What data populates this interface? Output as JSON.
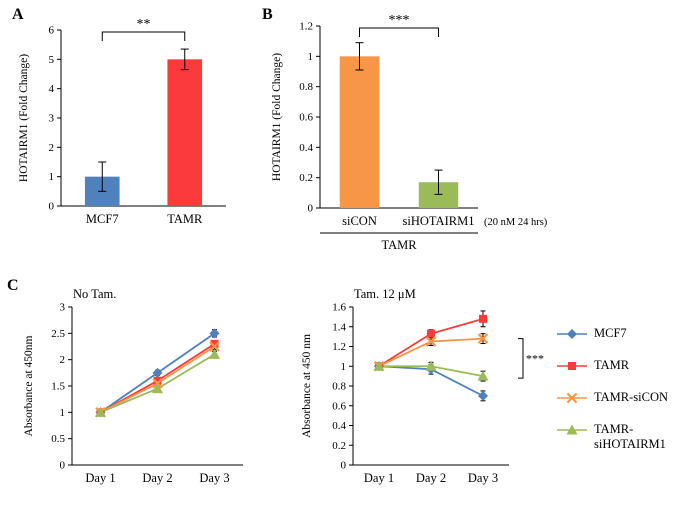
{
  "panels": {
    "a": {
      "label": "A"
    },
    "b": {
      "label": "B"
    },
    "c": {
      "label": "C"
    }
  },
  "colors": {
    "blue": "#4f81bd",
    "red": "#fb3b3b",
    "orange": "#f79646",
    "green": "#9bbb59",
    "axis": "#000000"
  },
  "legend": {
    "items": [
      {
        "label": "MCF7",
        "marker": "diamond",
        "color": "#4f81bd"
      },
      {
        "label": "TAMR",
        "marker": "square",
        "color": "#fb3b3b"
      },
      {
        "label": "TAMR-siCON",
        "marker": "x",
        "color": "#f79646"
      },
      {
        "label": "TAMR-siHOTAIRM1",
        "marker": "triangle",
        "color": "#9bbb59"
      }
    ]
  },
  "chart_data": [
    {
      "id": "panel_a",
      "type": "bar",
      "categories": [
        "MCF7",
        "TAMR"
      ],
      "values": [
        1,
        5
      ],
      "errors": [
        0.5,
        0.35
      ],
      "colors": [
        "#4f81bd",
        "#fb3b3b"
      ],
      "ylabel": "HOTAIRM1 (Fold Change)",
      "ylim": [
        0,
        6
      ],
      "ytick": 1,
      "significance": {
        "label": "**",
        "between": [
          0,
          1
        ]
      }
    },
    {
      "id": "panel_b",
      "type": "bar",
      "categories": [
        "siCON",
        "siHOTAIRM1"
      ],
      "values": [
        1,
        0.17
      ],
      "errors": [
        0.09,
        0.08
      ],
      "colors": [
        "#f79646",
        "#9bbb59"
      ],
      "ylabel": "HOTAIRM1 (Fold Change)",
      "ylim": [
        0,
        1.2
      ],
      "ytick": 0.2,
      "significance": {
        "label": "***",
        "between": [
          0,
          1
        ]
      },
      "annotation": "(20 nM 24 hrs)",
      "group_label": "TAMR"
    },
    {
      "id": "panel_c_no_tam",
      "type": "line",
      "title": "No Tam.",
      "categories": [
        "Day 1",
        "Day 2",
        "Day 3"
      ],
      "ylabel": "Absorbance at 450nm",
      "ylim": [
        0,
        3
      ],
      "ytick": 0.5,
      "series": [
        {
          "name": "MCF7",
          "marker": "diamond",
          "color": "#4f81bd",
          "values": [
            1,
            1.75,
            2.5
          ],
          "errors": [
            0.03,
            0.05,
            0.07
          ]
        },
        {
          "name": "TAMR",
          "marker": "square",
          "color": "#fb3b3b",
          "values": [
            1,
            1.6,
            2.3
          ],
          "errors": [
            0.03,
            0.05,
            0.06
          ]
        },
        {
          "name": "TAMR-siCON",
          "marker": "x",
          "color": "#f79646",
          "values": [
            1,
            1.55,
            2.25
          ],
          "errors": [
            0.03,
            0.05,
            0.06
          ]
        },
        {
          "name": "TAMR-siHOTAIRM1",
          "marker": "triangle",
          "color": "#9bbb59",
          "values": [
            1,
            1.45,
            2.1
          ],
          "errors": [
            0.03,
            0.05,
            0.06
          ]
        }
      ]
    },
    {
      "id": "panel_c_tam",
      "type": "line",
      "title": "Tam. 12 μM",
      "categories": [
        "Day 1",
        "Day 2",
        "Day 3"
      ],
      "ylabel": "Absorbance at 450 nm",
      "ylim": [
        0,
        1.6
      ],
      "ytick": 0.2,
      "series": [
        {
          "name": "MCF7",
          "marker": "diamond",
          "color": "#4f81bd",
          "values": [
            1,
            0.97,
            0.7
          ],
          "errors": [
            0.02,
            0.05,
            0.05
          ]
        },
        {
          "name": "TAMR",
          "marker": "square",
          "color": "#fb3b3b",
          "values": [
            1,
            1.33,
            1.48
          ],
          "errors": [
            0.02,
            0.04,
            0.08
          ]
        },
        {
          "name": "TAMR-siCON",
          "marker": "x",
          "color": "#f79646",
          "values": [
            1,
            1.25,
            1.28
          ],
          "errors": [
            0.02,
            0.04,
            0.05
          ]
        },
        {
          "name": "TAMR-siHOTAIRM1",
          "marker": "triangle",
          "color": "#9bbb59",
          "values": [
            1,
            1.0,
            0.9
          ],
          "errors": [
            0.02,
            0.04,
            0.05
          ]
        }
      ],
      "significance": {
        "label": "***",
        "from": 1.28,
        "to": 0.88
      }
    }
  ]
}
